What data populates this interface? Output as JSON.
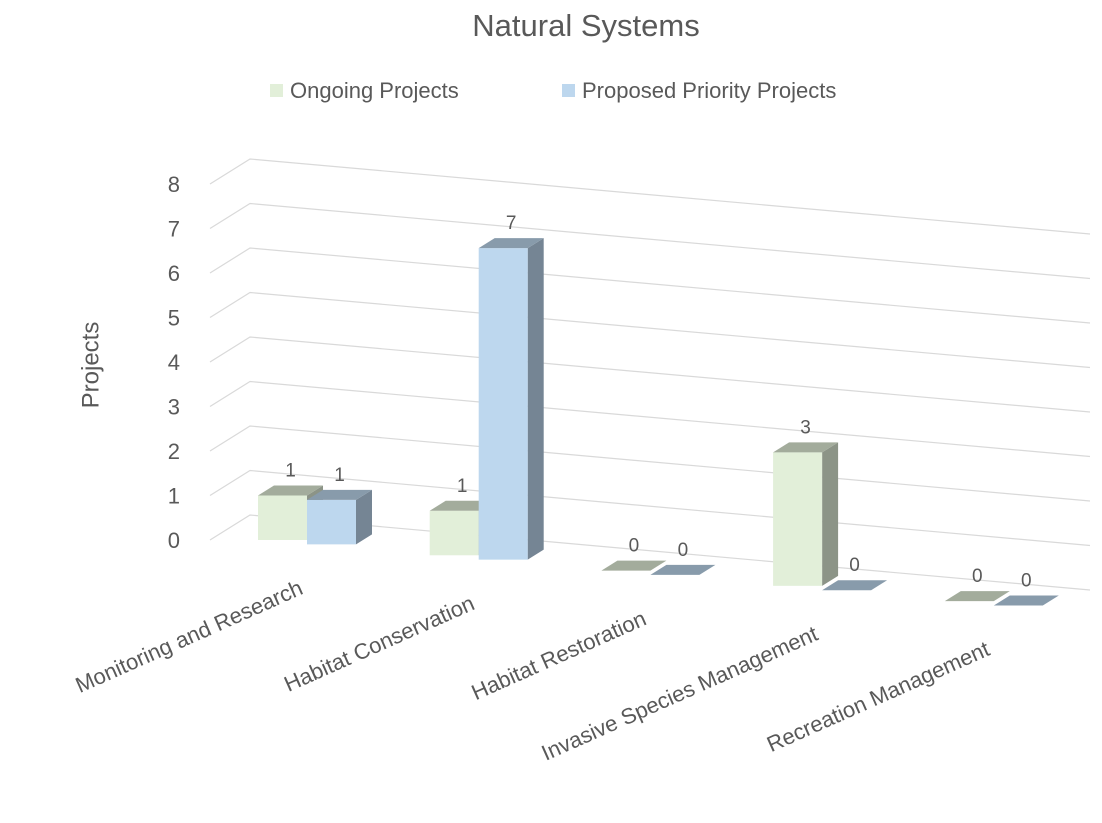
{
  "chart_data": {
    "type": "bar3d",
    "title": "Natural Systems",
    "y_label": "Projects",
    "categories": [
      "Monitoring and Research",
      "Habitat Conservation",
      "Habitat Restoration",
      "Invasive Species Management",
      "Recreation Management"
    ],
    "series": [
      {
        "name": "Ongoing Projects",
        "color": "#e2efd9",
        "values": [
          1,
          1,
          0,
          3,
          0
        ]
      },
      {
        "name": "Proposed Priority Projects",
        "color": "#bdd7ee",
        "values": [
          1,
          7,
          0,
          0,
          0
        ]
      }
    ],
    "ylim": [
      0,
      8
    ],
    "yticks": [
      0,
      1,
      2,
      3,
      4,
      5,
      6,
      7,
      8
    ],
    "grid": true,
    "legend": "top"
  }
}
